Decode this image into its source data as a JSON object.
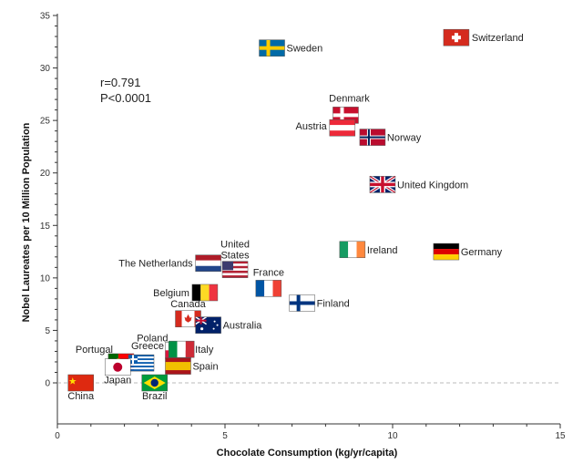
{
  "chart_data": {
    "type": "scatter",
    "xlabel": "Chocolate Consumption (kg/yr/capita)",
    "ylabel": "Nobel Laureates per 10 Million Population",
    "xlim": [
      0,
      15
    ],
    "ylim": [
      -4,
      35
    ],
    "x_ticks": [
      0,
      5,
      10,
      15
    ],
    "y_ticks": [
      0,
      5,
      10,
      15,
      20,
      25,
      30,
      35
    ],
    "annotations": [
      "r=0.791",
      "P<0.0001"
    ],
    "grid": false,
    "zero_reference_line": "dashed",
    "points": [
      {
        "label": "Switzerland",
        "x": 11.9,
        "y": 32.9,
        "flag": "switzerland-flag"
      },
      {
        "label": "Sweden",
        "x": 6.4,
        "y": 31.9,
        "flag": "sweden-flag"
      },
      {
        "label": "Denmark",
        "x": 8.6,
        "y": 25.5,
        "flag": "denmark-flag"
      },
      {
        "label": "Austria",
        "x": 8.5,
        "y": 24.3,
        "flag": "austria-flag"
      },
      {
        "label": "Norway",
        "x": 9.4,
        "y": 23.4,
        "flag": "norway-flag"
      },
      {
        "label": "United Kingdom",
        "x": 9.7,
        "y": 18.9,
        "flag": "uk-flag"
      },
      {
        "label": "Ireland",
        "x": 8.8,
        "y": 12.7,
        "flag": "ireland-flag"
      },
      {
        "label": "Germany",
        "x": 11.6,
        "y": 12.5,
        "flag": "germany-flag"
      },
      {
        "label": "United States",
        "x": 5.3,
        "y": 10.8,
        "flag": "usa-flag"
      },
      {
        "label": "The Netherlands",
        "x": 4.5,
        "y": 11.4,
        "flag": "netherlands-flag"
      },
      {
        "label": "France",
        "x": 6.3,
        "y": 9.0,
        "flag": "france-flag"
      },
      {
        "label": "Finland",
        "x": 7.3,
        "y": 7.6,
        "flag": "finland-flag"
      },
      {
        "label": "Belgium",
        "x": 4.4,
        "y": 8.6,
        "flag": "belgium-flag"
      },
      {
        "label": "Canada",
        "x": 3.9,
        "y": 6.1,
        "flag": "canada-flag"
      },
      {
        "label": "Australia",
        "x": 4.5,
        "y": 5.5,
        "flag": "australia-flag"
      },
      {
        "label": "Poland",
        "x": 3.6,
        "y": 3.1,
        "flag": "poland-flag"
      },
      {
        "label": "Italy",
        "x": 3.7,
        "y": 3.2,
        "flag": "italy-flag"
      },
      {
        "label": "Portugal",
        "x": 1.9,
        "y": 2.0,
        "flag": "portugal-flag"
      },
      {
        "label": "Greece",
        "x": 2.5,
        "y": 1.9,
        "flag": "greece-flag"
      },
      {
        "label": "Spain",
        "x": 3.6,
        "y": 1.6,
        "flag": "spain-flag"
      },
      {
        "label": "Japan",
        "x": 1.8,
        "y": 1.5,
        "flag": "japan-flag"
      },
      {
        "label": "China",
        "x": 0.7,
        "y": 0.0,
        "flag": "china-flag"
      },
      {
        "label": "Brazil",
        "x": 2.9,
        "y": 0.0,
        "flag": "brazil-flag"
      }
    ]
  },
  "colors": {
    "axis": "#333333",
    "zero_line": "#bbbbbb"
  }
}
